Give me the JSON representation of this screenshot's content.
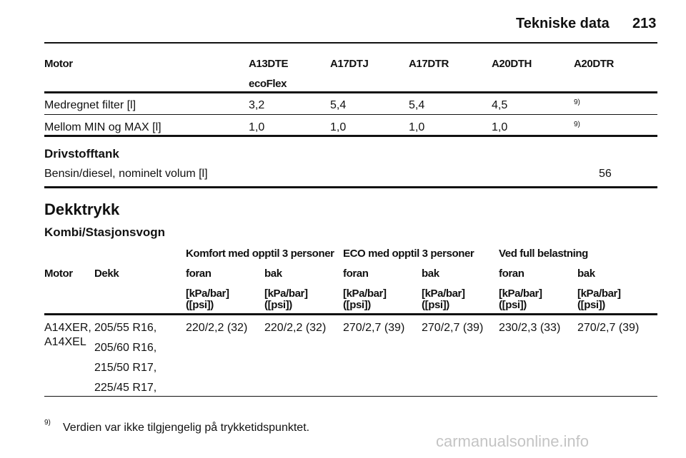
{
  "header": {
    "title": "Tekniske data",
    "page": "213"
  },
  "table1": {
    "columns": [
      "Motor",
      [
        "A13DTE",
        "ecoFlex"
      ],
      "A17DTJ",
      "A17DTR",
      "A20DTH",
      "A20DTR"
    ],
    "rows": [
      [
        "Medregnet filter [l]",
        "3,2",
        "5,4",
        "5,4",
        "4,5",
        "9)"
      ],
      [
        "Mellom MIN og MAX [l]",
        "1,0",
        "1,0",
        "1,0",
        "1,0",
        "9)"
      ]
    ]
  },
  "fuel": {
    "title": "Drivstofftank",
    "label": "Bensin/diesel, nominelt volum [l]",
    "value": "56"
  },
  "tyres": {
    "title": "Dekktrykk",
    "subtitle": "Kombi/Stasjonsvogn",
    "groups": [
      "Komfort med opptil 3 personer",
      "ECO med opptil 3 personer",
      "Ved full belastning"
    ],
    "columns": [
      "Motor",
      "Dekk",
      "foran",
      "bak",
      "foran",
      "bak",
      "foran",
      "bak"
    ],
    "units": [
      [
        "[kPa/bar]",
        "([psi])"
      ],
      [
        "[kPa/bar]",
        "([psi])"
      ],
      [
        "[kPa/bar]",
        "([psi])"
      ],
      [
        "[kPa/bar]",
        "([psi])"
      ],
      [
        "[kPa/bar]",
        "([psi])"
      ],
      [
        "[kPa/bar]",
        "([psi])"
      ]
    ],
    "rows": [
      {
        "motor": [
          "A14XER,",
          "A14XEL"
        ],
        "tyres": [
          "205/55 R16,",
          "205/60 R16,",
          "215/50 R17,",
          "225/45 R17,"
        ],
        "values": [
          "220/2,2 (32)",
          "220/2,2 (32)",
          "270/2,7 (39)",
          "270/2,7 (39)",
          "230/2,3 (33)",
          "270/2,7 (39)"
        ]
      }
    ]
  },
  "footnote": {
    "marker": "9)",
    "text": "Verdien var ikke tilgjengelig på trykketidspunktet."
  },
  "watermark": "carmanualsonline.info"
}
